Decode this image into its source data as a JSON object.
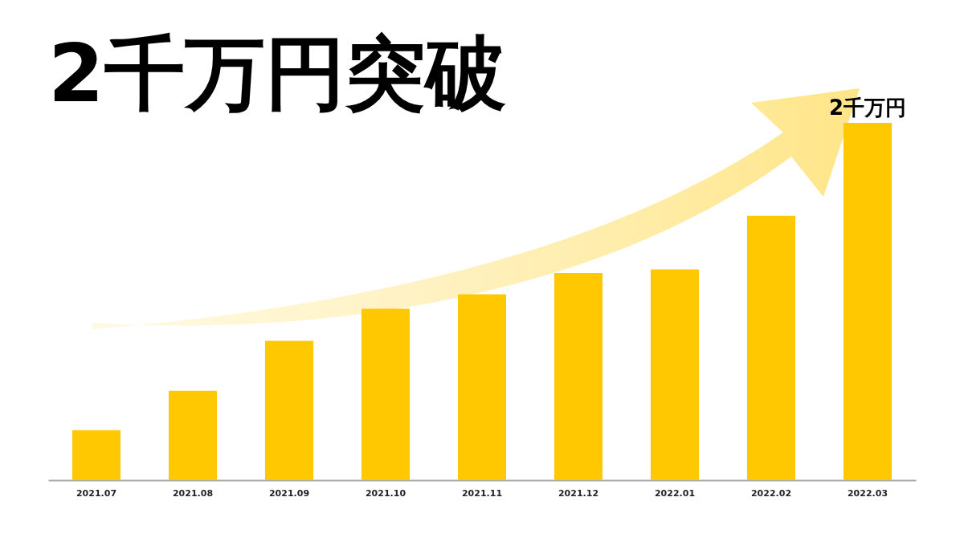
{
  "chart_data": {
    "type": "bar",
    "title": "2千万円突破",
    "categories": [
      "2021.07",
      "2021.08",
      "2021.09",
      "2021.10",
      "2021.11",
      "2021.12",
      "2022.01",
      "2022.02",
      "2022.03"
    ],
    "values": [
      0.28,
      0.5,
      0.78,
      0.96,
      1.04,
      1.16,
      1.18,
      1.48,
      2
    ],
    "value_labels": [
      null,
      null,
      null,
      null,
      null,
      null,
      null,
      null,
      "2千万円"
    ],
    "color": "#ffc800"
  }
}
